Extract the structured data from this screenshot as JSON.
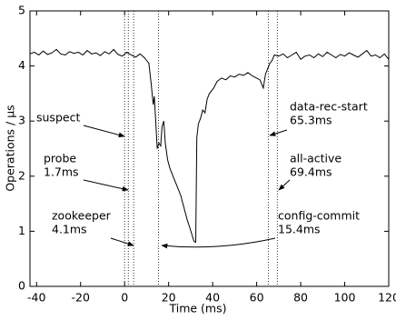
{
  "chart_data": {
    "type": "line",
    "x_label": "Time (ms)",
    "y_label": "Operations / μs",
    "xlim": [
      -43,
      120
    ],
    "ylim": [
      0,
      5
    ],
    "xticks": [
      -40,
      -20,
      0,
      20,
      40,
      60,
      80,
      100,
      120
    ],
    "yticks": [
      0,
      1,
      2,
      3,
      4,
      5
    ],
    "series": [
      {
        "color": "#000000",
        "x": [
          -43,
          -41,
          -39,
          -37,
          -35,
          -33,
          -31,
          -29,
          -27,
          -25,
          -23,
          -21,
          -19,
          -17,
          -15,
          -13,
          -11,
          -9,
          -7,
          -5,
          -3,
          -1,
          1,
          3,
          5,
          7,
          9,
          10,
          11,
          12,
          13,
          13.5,
          14,
          14.8,
          15.6,
          16.4,
          17,
          17.8,
          18.5,
          19.5,
          20.5,
          21.5,
          22.5,
          23.5,
          24.5,
          25.5,
          26.5,
          27.5,
          28.5,
          29.5,
          30.5,
          31.5,
          32.3,
          32.8,
          33.5,
          34.5,
          35.5,
          36.5,
          37.5,
          38.5,
          39.5,
          40.5,
          42,
          44,
          46,
          48,
          50,
          52,
          54,
          56,
          58,
          60,
          61.5,
          63,
          64,
          65,
          66,
          67,
          68,
          70,
          72,
          74,
          76,
          78,
          80,
          82,
          84,
          86,
          88,
          90,
          92,
          94,
          96,
          98,
          100,
          102,
          104,
          106,
          108,
          110,
          112,
          114,
          116,
          118,
          120
        ],
        "values": [
          4.22,
          4.25,
          4.2,
          4.27,
          4.21,
          4.24,
          4.3,
          4.22,
          4.2,
          4.26,
          4.23,
          4.25,
          4.2,
          4.28,
          4.22,
          4.24,
          4.19,
          4.26,
          4.22,
          4.3,
          4.21,
          4.18,
          4.25,
          4.2,
          4.16,
          4.22,
          4.15,
          4.1,
          4.05,
          3.7,
          3.3,
          3.45,
          3.1,
          2.5,
          2.6,
          2.55,
          2.9,
          3.0,
          2.6,
          2.3,
          2.15,
          2.05,
          1.95,
          1.85,
          1.75,
          1.65,
          1.5,
          1.35,
          1.2,
          1.08,
          0.95,
          0.82,
          0.8,
          2.7,
          2.95,
          3.05,
          3.2,
          3.15,
          3.4,
          3.5,
          3.55,
          3.6,
          3.72,
          3.78,
          3.75,
          3.82,
          3.8,
          3.85,
          3.83,
          3.88,
          3.82,
          3.78,
          3.75,
          3.6,
          3.85,
          3.95,
          4.05,
          4.1,
          4.2,
          4.18,
          4.22,
          4.15,
          4.2,
          4.25,
          4.12,
          4.18,
          4.2,
          4.15,
          4.22,
          4.17,
          4.25,
          4.2,
          4.15,
          4.21,
          4.18,
          4.24,
          4.2,
          4.16,
          4.22,
          4.28,
          4.18,
          4.2,
          4.15,
          4.22,
          4.12
        ]
      }
    ],
    "annotations": [
      {
        "text": "suspect",
        "x": 0
      },
      {
        "text": "probe",
        "time_label": "1.7ms",
        "x": 1.7
      },
      {
        "text": "zookeeper",
        "time_label": "4.1ms",
        "x": 4.1
      },
      {
        "text": "config-commit",
        "time_label": "15.4ms",
        "x": 15.4
      },
      {
        "text": "data-rec-start",
        "time_label": "65.3ms",
        "x": 65.3
      },
      {
        "text": "all-active",
        "time_label": "69.4ms",
        "x": 69.4
      }
    ]
  }
}
